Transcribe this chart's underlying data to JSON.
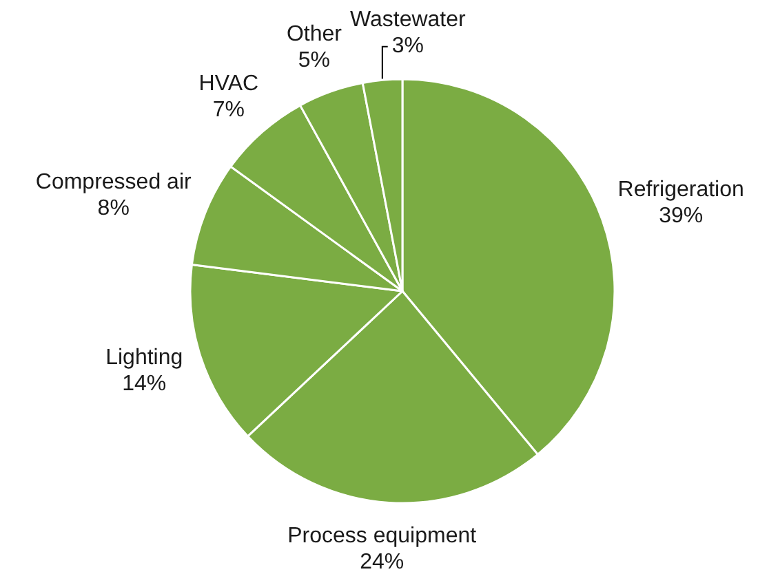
{
  "chart_data": {
    "type": "pie",
    "categories": [
      "Refrigeration",
      "Process equipment",
      "Lighting",
      "Compressed air",
      "HVAC",
      "Other",
      "Wastewater"
    ],
    "values": [
      39,
      24,
      14,
      8,
      7,
      5,
      3
    ],
    "colors": [
      "#7bac43",
      "#7bac43",
      "#7bac43",
      "#7bac43",
      "#7bac43",
      "#7bac43",
      "#7bac43"
    ],
    "value_labels": [
      "39%",
      "24%",
      "14%",
      "8%",
      "7%",
      "5%",
      "3%"
    ],
    "legend": false
  }
}
